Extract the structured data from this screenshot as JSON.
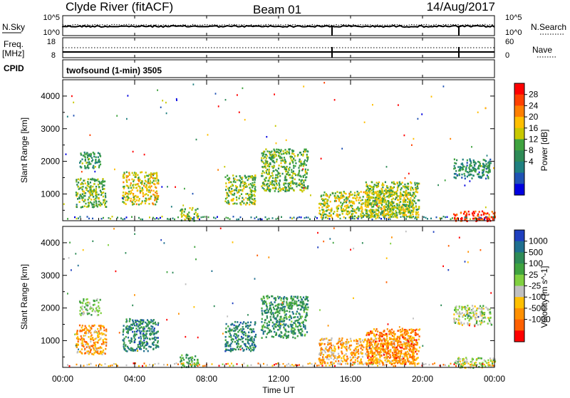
{
  "header": {
    "station": "Clyde River (fitACF)",
    "beam": "Beam 01",
    "date": "14/Aug/2017"
  },
  "strip_labels": {
    "nsky": "N.Sky",
    "freq": "Freq.",
    "mhz": "[MHz]",
    "cpid": "CPID",
    "nsearch": "N.Search",
    "nave": "Nave",
    "sky_ticks": [
      "10^5",
      "10^0"
    ],
    "search_ticks": [
      "10^5",
      "10^0"
    ],
    "freq_ticks": [
      "18",
      "8"
    ],
    "nave_ticks": [
      "60",
      "0"
    ]
  },
  "cpid_text": "twofsound (1-min) 3505",
  "x_axis": {
    "label": "Time UT",
    "ticks": [
      "00:00",
      "04:00",
      "08:00",
      "12:00",
      "16:00",
      "20:00",
      "00:00"
    ]
  },
  "chart_data": [
    {
      "type": "heatmap",
      "xlabel": "Time UT",
      "ylabel": "Slant Range [km]",
      "xlim": [
        0,
        24
      ],
      "ylim": [
        180,
        4500
      ],
      "yticks": [
        "1000",
        "2000",
        "3000",
        "4000"
      ],
      "colorbar": {
        "label": "Power [dB]",
        "ticks": [
          "28",
          "24",
          "20",
          "16",
          "12",
          "8",
          "4"
        ],
        "colors": [
          "#ff0000",
          "#ff4000",
          "#ff7f00",
          "#ffbf00",
          "#c8c800",
          "#3fa33f",
          "#2e8b57",
          "#208080",
          "#1f52b4",
          "#0000e0"
        ]
      },
      "features": [
        {
          "t_start": 0.7,
          "t_end": 2.4,
          "r_min": 600,
          "r_max": 1500,
          "level": 0.45
        },
        {
          "t_start": 0.9,
          "t_end": 2.1,
          "r_min": 1800,
          "r_max": 2300,
          "level": 0.35
        },
        {
          "t_start": 3.3,
          "t_end": 5.3,
          "r_min": 700,
          "r_max": 1700,
          "level": 0.6
        },
        {
          "t_start": 6.5,
          "t_end": 7.5,
          "r_min": 200,
          "r_max": 600,
          "level": 0.5
        },
        {
          "t_start": 9.0,
          "t_end": 10.7,
          "r_min": 700,
          "r_max": 1600,
          "level": 0.5
        },
        {
          "t_start": 11.0,
          "t_end": 13.6,
          "r_min": 1100,
          "r_max": 2400,
          "level": 0.45
        },
        {
          "t_start": 14.2,
          "t_end": 19.5,
          "r_min": 300,
          "r_max": 1100,
          "level": 0.55
        },
        {
          "t_start": 16.8,
          "t_end": 19.8,
          "r_min": 300,
          "r_max": 1400,
          "level": 0.5
        },
        {
          "t_start": 21.7,
          "t_end": 23.8,
          "r_min": 1500,
          "r_max": 2100,
          "level": 0.3
        },
        {
          "t_start": 21.7,
          "t_end": 24.0,
          "r_min": 190,
          "r_max": 500,
          "level": 0.95
        }
      ]
    },
    {
      "type": "heatmap",
      "xlabel": "Time UT",
      "ylabel": "Slant Range [km]",
      "xlim": [
        0,
        24
      ],
      "ylim": [
        180,
        4500
      ],
      "yticks": [
        "1000",
        "2000",
        "3000",
        "4000"
      ],
      "colorbar": {
        "label": "Velocity [m s^-1]",
        "ticks": [
          "1000",
          "500",
          "100",
          "25",
          "-25",
          "-100",
          "-500",
          "-1000"
        ],
        "colors": [
          "#1f3fbf",
          "#1f6f8f",
          "#2e8b57",
          "#3fa33f",
          "#80d040",
          "#c0c0c0",
          "#ffc000",
          "#ff9000",
          "#ff6000",
          "#ff0000"
        ]
      },
      "features": [
        {
          "t_start": 0.7,
          "t_end": 2.4,
          "r_min": 600,
          "r_max": 1500,
          "level": 0.25
        },
        {
          "t_start": 0.9,
          "t_end": 2.1,
          "r_min": 1800,
          "r_max": 2300,
          "level": 0.55
        },
        {
          "t_start": 3.3,
          "t_end": 5.3,
          "r_min": 700,
          "r_max": 1700,
          "level": 0.8
        },
        {
          "t_start": 6.5,
          "t_end": 7.5,
          "r_min": 200,
          "r_max": 600,
          "level": 0.65
        },
        {
          "t_start": 9.0,
          "t_end": 10.7,
          "r_min": 700,
          "r_max": 1600,
          "level": 0.8
        },
        {
          "t_start": 11.0,
          "t_end": 13.6,
          "r_min": 1100,
          "r_max": 2400,
          "level": 0.75
        },
        {
          "t_start": 14.2,
          "t_end": 19.5,
          "r_min": 300,
          "r_max": 1100,
          "level": 0.3
        },
        {
          "t_start": 16.8,
          "t_end": 19.8,
          "r_min": 300,
          "r_max": 1400,
          "level": 0.2
        },
        {
          "t_start": 21.7,
          "t_end": 23.8,
          "r_min": 1500,
          "r_max": 2100,
          "level": 0.5
        },
        {
          "t_start": 21.7,
          "t_end": 24.0,
          "r_min": 190,
          "r_max": 500,
          "level": 0.5
        }
      ]
    }
  ]
}
